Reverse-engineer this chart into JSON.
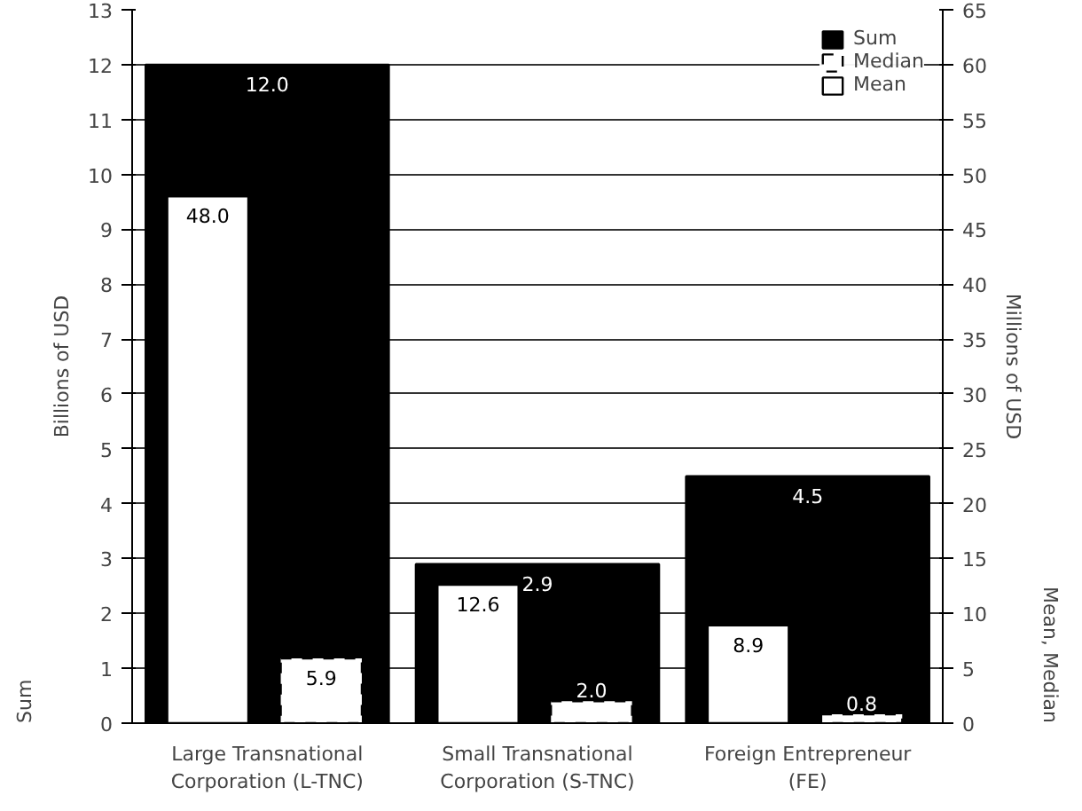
{
  "chart_data": {
    "type": "bar",
    "categories": [
      "Large Transnational\nCorporation (L-TNC)",
      "Small Transnational\nCorporation (S-TNC)",
      "Foreign Entrepreneur\n(FE)"
    ],
    "series": [
      {
        "name": "Sum",
        "color": "#000000",
        "values": [
          12.0,
          2.9,
          4.5
        ],
        "value_labels": [
          "12.0",
          "2.9",
          "4.5"
        ]
      },
      {
        "name": "Median",
        "color": "#ffffff",
        "values": [
          5.9,
          2.0,
          0.8
        ],
        "axis": "y2",
        "line_style": "dashed",
        "value_labels": [
          "5.9",
          "2.0",
          "0.8"
        ]
      },
      {
        "name": "Mean",
        "color": "#ffffff",
        "values": [
          48.0,
          12.6,
          8.9
        ],
        "axis": "y2",
        "value_labels": [
          "48.0",
          "12.6",
          "8.9"
        ]
      }
    ],
    "ylabel": "Billions of USD",
    "y2label": "Millions of USD",
    "annotations": [
      "Sum",
      "Mean, Median"
    ],
    "ylim": [
      0,
      13
    ],
    "yticks": [
      0,
      1,
      2,
      3,
      4,
      5,
      6,
      7,
      8,
      9,
      10,
      11,
      12,
      13
    ],
    "y2lim": [
      0,
      65
    ],
    "y2ticks": [
      0,
      5,
      10,
      15,
      20,
      25,
      30,
      35,
      40,
      45,
      50,
      55,
      60,
      65
    ],
    "grid": "y",
    "legend": "top right"
  }
}
